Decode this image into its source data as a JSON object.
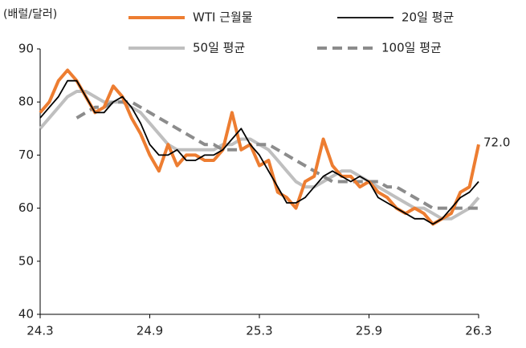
{
  "chart_data": {
    "type": "line",
    "y_label": "(배럴/달러)",
    "annotation": "72.0",
    "categories": [
      "24.3",
      null,
      null,
      null,
      null,
      null,
      null,
      null,
      null,
      null,
      null,
      null,
      "24.9",
      null,
      null,
      null,
      null,
      null,
      null,
      null,
      null,
      null,
      null,
      null,
      "25.3",
      null,
      null,
      null,
      null,
      null,
      null,
      null,
      null,
      null,
      null,
      null,
      "25.9",
      null,
      null,
      null,
      null,
      null,
      null,
      null,
      null,
      null,
      null,
      null,
      "26.3"
    ],
    "series": [
      {
        "name": "WTI 근월물",
        "color": "#ed7d31",
        "width": 4,
        "dash": false,
        "values": [
          78,
          80,
          84,
          86,
          84,
          81,
          78,
          79,
          83,
          81,
          77,
          74,
          70,
          67,
          72,
          68,
          70,
          70,
          69,
          69,
          71,
          78,
          71,
          72,
          68,
          69,
          63,
          62,
          60,
          65,
          66,
          73,
          68,
          66,
          66,
          64,
          65,
          63,
          62,
          60,
          59,
          60,
          59,
          57,
          58,
          59,
          63,
          64,
          72
        ]
      },
      {
        "name": "20일 평균",
        "color": "#000000",
        "width": 1.8,
        "dash": false,
        "values": [
          77,
          79,
          81,
          84,
          84,
          81,
          78,
          78,
          80,
          81,
          79,
          76,
          72,
          70,
          70,
          71,
          69,
          69,
          70,
          70,
          71,
          73,
          75,
          72,
          70,
          67,
          64,
          61,
          61,
          62,
          64,
          66,
          67,
          66,
          65,
          66,
          65,
          62,
          61,
          60,
          59,
          58,
          58,
          57,
          58,
          60,
          62,
          63,
          65
        ]
      },
      {
        "name": "50일 평균",
        "color": "#bfbfbf",
        "width": 4,
        "dash": false,
        "values": [
          75,
          77,
          79,
          81,
          82,
          82,
          81,
          80,
          80,
          80,
          79,
          78,
          76,
          74,
          72,
          71,
          71,
          71,
          71,
          71,
          72,
          72,
          73,
          73,
          72,
          71,
          69,
          67,
          65,
          64,
          64,
          65,
          66,
          67,
          67,
          66,
          65,
          64,
          63,
          62,
          61,
          60,
          60,
          59,
          58,
          58,
          59,
          60,
          62
        ]
      },
      {
        "name": "100일 평균",
        "color": "#8c8c8c",
        "width": 4,
        "dash": true,
        "values": [
          null,
          null,
          null,
          null,
          77,
          78,
          79,
          79,
          80,
          80,
          80,
          79,
          78,
          77,
          76,
          75,
          74,
          73,
          72,
          72,
          71,
          71,
          71,
          72,
          72,
          72,
          71,
          70,
          69,
          68,
          67,
          66,
          65,
          65,
          65,
          65,
          65,
          65,
          64,
          64,
          63,
          62,
          61,
          60,
          60,
          60,
          60,
          60,
          60
        ]
      }
    ],
    "ylim": [
      40,
      90
    ],
    "yticks": [
      40,
      50,
      60,
      70,
      80,
      90
    ],
    "grid": false
  }
}
